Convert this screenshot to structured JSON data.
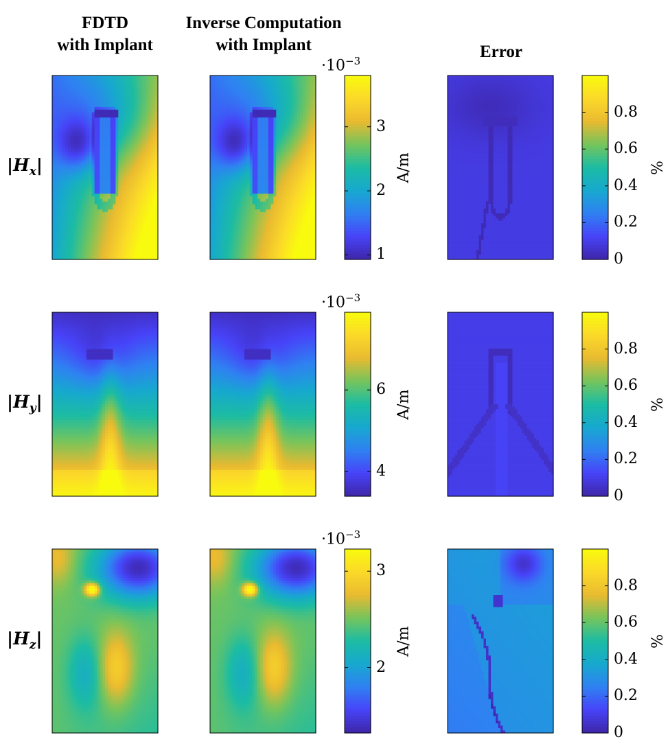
{
  "column_titles": {
    "fdtd": [
      "FDTD",
      "with Implant"
    ],
    "inverse": [
      "Inverse Computation",
      "with Implant"
    ],
    "error": "Error"
  },
  "colors": {
    "parula": [
      "#3e26a8",
      "#4743f8",
      "#2f81f2",
      "#17a8cf",
      "#1cbca3",
      "#76c45c",
      "#e9ba30",
      "#fbd929",
      "#f9fb0e"
    ],
    "frame": "#000000"
  },
  "chart_data": [
    {
      "type": "heatmap",
      "row_label": "|H_x|",
      "colorbar_field": {
        "exponent": "·10",
        "power": "−3",
        "unit": "A/m",
        "range": [
          0.00093,
          0.0038
        ],
        "ticks": [
          {
            "value": 1,
            "label": "1"
          },
          {
            "value": 2,
            "label": "2"
          },
          {
            "value": 3,
            "label": "3"
          }
        ]
      },
      "colorbar_error": {
        "unit": "%",
        "range": [
          0,
          1
        ],
        "ticks": [
          {
            "value": 0,
            "label": "0"
          },
          {
            "value": 0.2,
            "label": "0.2"
          },
          {
            "value": 0.4,
            "label": "0.4"
          },
          {
            "value": 0.6,
            "label": "0.6"
          },
          {
            "value": 0.8,
            "label": "0.8"
          }
        ]
      }
    },
    {
      "type": "heatmap",
      "row_label": "|H_y|",
      "colorbar_field": {
        "exponent": "·10",
        "power": "−3",
        "unit": "A/m",
        "range": [
          0.0034,
          0.0079
        ],
        "ticks": [
          {
            "value": 4,
            "label": "4"
          },
          {
            "value": 6,
            "label": "6"
          }
        ]
      },
      "colorbar_error": {
        "unit": "%",
        "range": [
          0,
          1
        ],
        "ticks": [
          {
            "value": 0,
            "label": "0"
          },
          {
            "value": 0.2,
            "label": "0.2"
          },
          {
            "value": 0.4,
            "label": "0.4"
          },
          {
            "value": 0.6,
            "label": "0.6"
          },
          {
            "value": 0.8,
            "label": "0.8"
          }
        ]
      }
    },
    {
      "type": "heatmap",
      "row_label": "|H_z|",
      "colorbar_field": {
        "exponent": "·10",
        "power": "−3",
        "unit": "A/m",
        "range": [
          0.00132,
          0.00323
        ],
        "ticks": [
          {
            "value": 2,
            "label": "2"
          },
          {
            "value": 3,
            "label": "3"
          }
        ]
      },
      "colorbar_error": {
        "unit": "%",
        "range": [
          0,
          1
        ],
        "ticks": [
          {
            "value": 0,
            "label": "0"
          },
          {
            "value": 0.2,
            "label": "0.2"
          },
          {
            "value": 0.4,
            "label": "0.4"
          },
          {
            "value": 0.6,
            "label": "0.6"
          },
          {
            "value": 0.8,
            "label": "0.8"
          }
        ]
      }
    }
  ]
}
